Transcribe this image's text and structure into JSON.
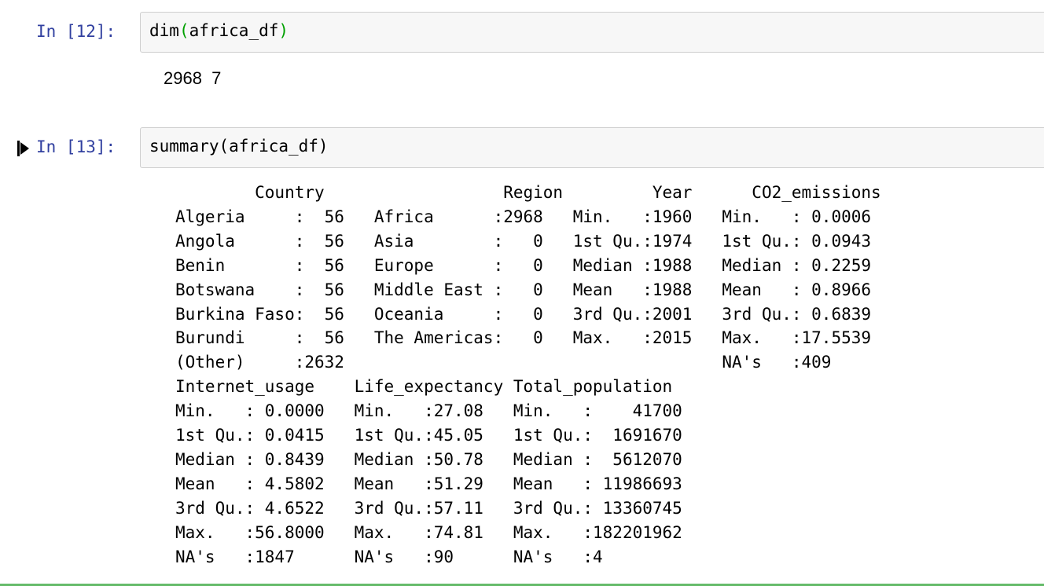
{
  "cells": [
    {
      "prompt": "In [12]:",
      "code_fn": "dim",
      "code_open": "(",
      "code_arg": "africa_df",
      "code_close": ")",
      "output": "2968  7"
    },
    {
      "prompt": "In [13]:",
      "code": "summary(africa_df)",
      "output_lines": [
        "        Country                  Region         Year      CO2_emissions",
        "Algeria     :  56   Africa      :2968   Min.   :1960   Min.   : 0.0006",
        "Angola      :  56   Asia        :   0   1st Qu.:1974   1st Qu.: 0.0943",
        "Benin       :  56   Europe      :   0   Median :1988   Median : 0.2259",
        "Botswana    :  56   Middle East :   0   Mean   :1988   Mean   : 0.8966",
        "Burkina Faso:  56   Oceania     :   0   3rd Qu.:2001   3rd Qu.: 0.6839",
        "Burundi     :  56   The Americas:   0   Max.   :2015   Max.   :17.5539",
        "(Other)     :2632                                      NA's   :409",
        "Internet_usage    Life_expectancy Total_population",
        "Min.   : 0.0000   Min.   :27.08   Min.   :    41700",
        "1st Qu.: 0.0415   1st Qu.:45.05   1st Qu.:  1691670",
        "Median : 0.8439   Median :50.78   Median :  5612070",
        "Mean   : 4.5802   Mean   :51.29   Mean   : 11986693",
        "3rd Qu.: 4.6522   3rd Qu.:57.11   3rd Qu.: 13360745",
        "Max.   :56.8000   Max.   :74.81   Max.   :182201962",
        "NA's   :1847      NA's   :90      NA's   :4"
      ]
    }
  ]
}
